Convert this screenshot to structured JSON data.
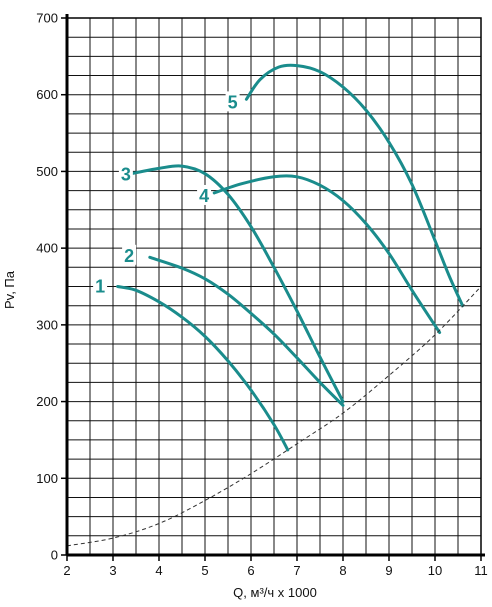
{
  "chart_data": {
    "type": "line",
    "title": "",
    "xlabel": "Q, м³/ч х 1000",
    "ylabel": "Pv, Па",
    "xlim": [
      2,
      11
    ],
    "ylim": [
      0,
      700
    ],
    "x_ticks": [
      2,
      3,
      4,
      5,
      6,
      7,
      8,
      9,
      10,
      11
    ],
    "y_ticks": [
      0,
      100,
      200,
      300,
      400,
      500,
      600,
      700
    ],
    "x_minor_step": 0.5,
    "grid": true,
    "colors": {
      "curve": "#1a8c8c",
      "system": "#333333",
      "grid": "#111111"
    },
    "series": [
      {
        "name": "1",
        "points": [
          [
            3.1,
            350
          ],
          [
            3.5,
            345
          ],
          [
            4.0,
            330
          ],
          [
            4.5,
            310
          ],
          [
            5.0,
            285
          ],
          [
            5.5,
            253
          ],
          [
            6.0,
            215
          ],
          [
            6.5,
            170
          ],
          [
            6.8,
            137
          ]
        ]
      },
      {
        "name": "2",
        "points": [
          [
            3.8,
            388
          ],
          [
            4.5,
            374
          ],
          [
            5.0,
            360
          ],
          [
            5.5,
            340
          ],
          [
            6.0,
            315
          ],
          [
            6.5,
            288
          ],
          [
            7.0,
            257
          ],
          [
            7.5,
            225
          ],
          [
            8.0,
            195
          ]
        ]
      },
      {
        "name": "3",
        "points": [
          [
            3.4,
            497
          ],
          [
            4.0,
            504
          ],
          [
            4.5,
            507
          ],
          [
            5.0,
            497
          ],
          [
            5.5,
            470
          ],
          [
            6.0,
            428
          ],
          [
            6.5,
            375
          ],
          [
            7.0,
            318
          ],
          [
            7.5,
            258
          ],
          [
            8.0,
            200
          ]
        ]
      },
      {
        "name": "4",
        "points": [
          [
            5.2,
            472
          ],
          [
            5.8,
            484
          ],
          [
            6.5,
            493
          ],
          [
            7.0,
            493
          ],
          [
            7.5,
            482
          ],
          [
            8.0,
            462
          ],
          [
            8.5,
            432
          ],
          [
            9.0,
            393
          ],
          [
            9.5,
            345
          ],
          [
            10.1,
            290
          ]
        ]
      },
      {
        "name": "5",
        "points": [
          [
            5.9,
            594
          ],
          [
            6.2,
            620
          ],
          [
            6.6,
            636
          ],
          [
            7.0,
            638
          ],
          [
            7.5,
            630
          ],
          [
            8.0,
            610
          ],
          [
            8.5,
            580
          ],
          [
            9.0,
            538
          ],
          [
            9.5,
            483
          ],
          [
            10.0,
            410
          ],
          [
            10.3,
            365
          ],
          [
            10.6,
            325
          ]
        ]
      },
      {
        "name": "",
        "dashed": true,
        "points": [
          [
            2.0,
            12
          ],
          [
            3.0,
            22
          ],
          [
            4.0,
            41
          ],
          [
            5.0,
            71
          ],
          [
            6.0,
            106
          ],
          [
            7.0,
            145
          ],
          [
            8.0,
            185
          ],
          [
            9.0,
            234
          ],
          [
            10.0,
            287
          ],
          [
            11.0,
            350
          ]
        ]
      }
    ],
    "labels": [
      {
        "text": "1",
        "x": 2.72,
        "y": 350
      },
      {
        "text": "2",
        "x": 3.35,
        "y": 390
      },
      {
        "text": "3",
        "x": 3.28,
        "y": 496
      },
      {
        "text": "4",
        "x": 4.98,
        "y": 468
      },
      {
        "text": "5",
        "x": 5.6,
        "y": 590
      }
    ]
  }
}
